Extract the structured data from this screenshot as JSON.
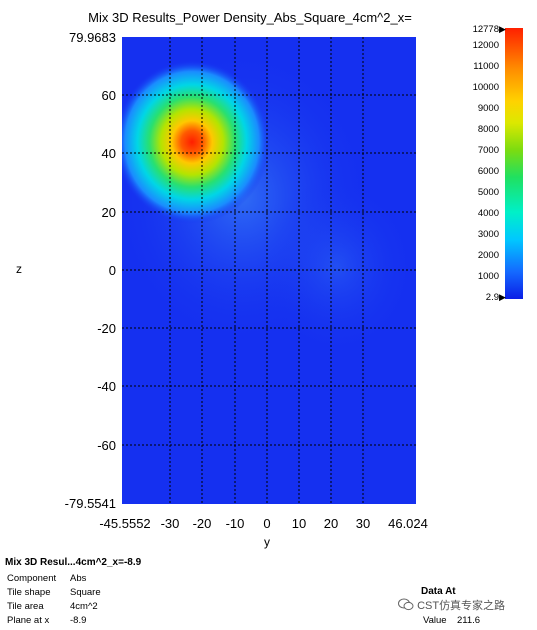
{
  "window": {
    "title": "Mix 3D Results_Power Density_Abs_Square_4cm^2_x="
  },
  "plot": {
    "y_axis_title": "z",
    "x_axis_title": "y",
    "z_ticks": [
      "79.9683",
      "60",
      "40",
      "20",
      "0",
      "-20",
      "-40",
      "-60",
      "-79.5541"
    ],
    "y_ticks": [
      "-45.5552",
      "-30",
      "-20",
      "-10",
      "0",
      "10",
      "20",
      "30",
      "46.024"
    ]
  },
  "colorbar": {
    "labels": [
      "12778",
      "12000",
      "11000",
      "10000",
      "9000",
      "8000",
      "7000",
      "6000",
      "5000",
      "4000",
      "3000",
      "2000",
      "1000",
      "2.9"
    ]
  },
  "info_panel": {
    "title": "Mix 3D Resul...4cm^2_x=-8.9",
    "rows": [
      {
        "key": "Component",
        "value": "Abs"
      },
      {
        "key": "Tile shape",
        "value": "Square"
      },
      {
        "key": "Tile area",
        "value": "4cm^2"
      },
      {
        "key": "Plane at x",
        "value": "-8.9"
      }
    ]
  },
  "data_at": {
    "title": "Data At",
    "key": "Value",
    "value": "211.6"
  },
  "watermark": "CST仿真专家之路",
  "icons": [
    "wechat-icon",
    "colorbar-max-arrow-icon",
    "colorbar-min-arrow-icon"
  ]
}
